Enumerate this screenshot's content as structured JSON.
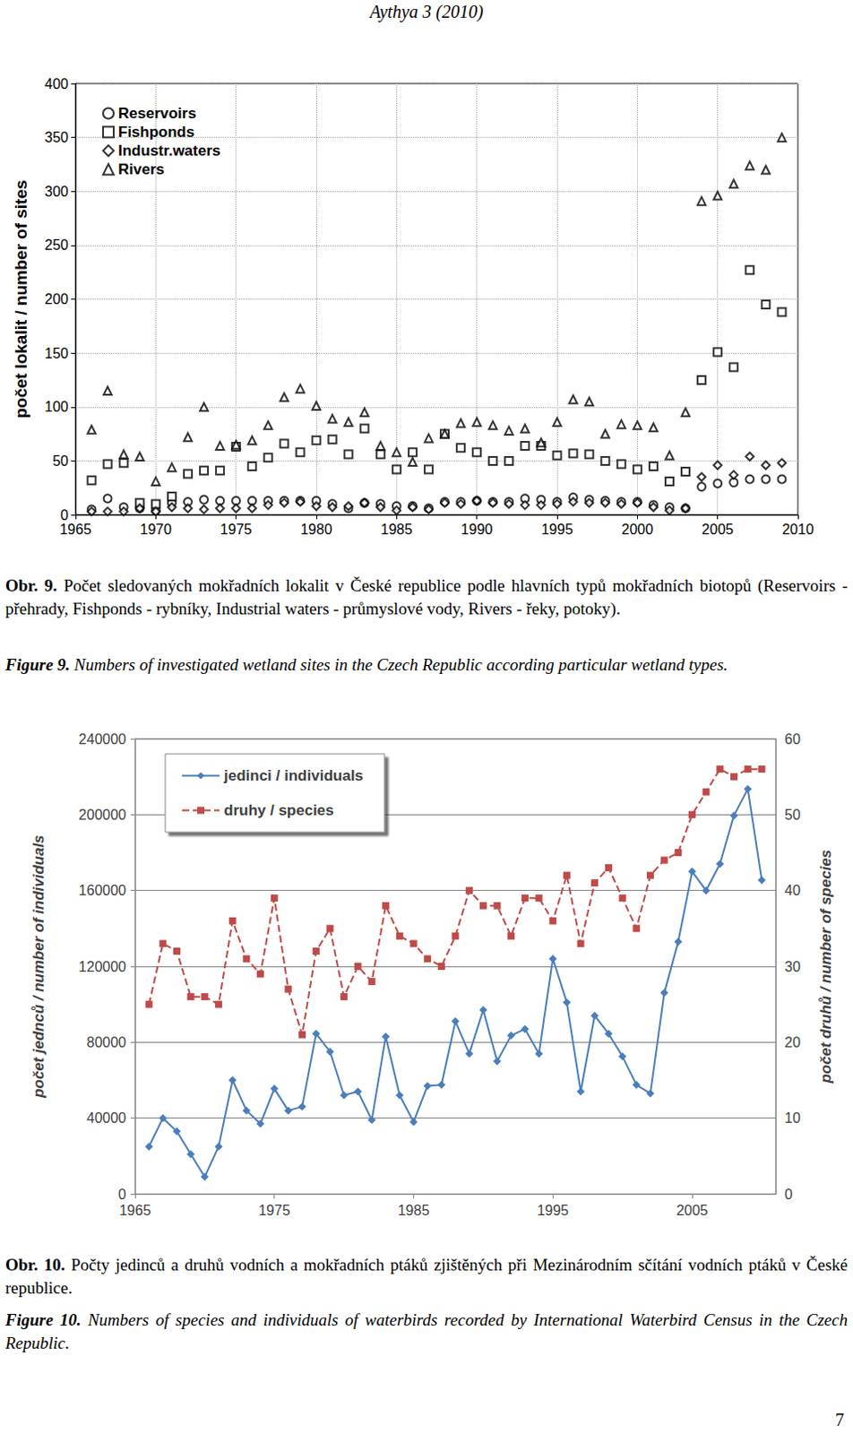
{
  "header": "Aythya 3 (2010)",
  "page_number": "7",
  "captions": [
    {
      "label": "Obr. 9.",
      "text": "Počet sledovaných mokřadních lokalit v České republice podle hlavních typů mokřadních biotopů (Reservoirs - přehrady, Fishponds - rybníky, Industrial waters - průmyslové vody, Rivers - řeky, potoky)."
    },
    {
      "label": "Figure 9.",
      "text": "Numbers of investigated wetland sites in the Czech Republic according particular wetland types."
    },
    {
      "label": "Obr. 10.",
      "text": "Počty jedinců a druhů vodních a mokřadních ptáků zjištěných při Mezinárodním sčítání vodních ptáků v České republice."
    },
    {
      "label": "Figure 10.",
      "text": "Numbers of species and individuals of waterbirds recorded by International Waterbird Census in the Czech Republic."
    }
  ],
  "chart_data": [
    {
      "type": "scatter",
      "y_label": "počet lokalit / number of sites",
      "x": [
        1966,
        1967,
        1968,
        1969,
        1970,
        1971,
        1972,
        1973,
        1974,
        1975,
        1976,
        1977,
        1978,
        1979,
        1980,
        1981,
        1982,
        1983,
        1984,
        1985,
        1986,
        1987,
        1988,
        1989,
        1990,
        1991,
        1992,
        1993,
        1994,
        1995,
        1996,
        1997,
        1998,
        1999,
        2000,
        2001,
        2002,
        2003,
        2004,
        2005,
        2006,
        2007,
        2008,
        2009
      ],
      "xlim": [
        1965,
        2010
      ],
      "xticks": [
        1965,
        1970,
        1975,
        1980,
        1985,
        1990,
        1995,
        2000,
        2005,
        2010
      ],
      "ylim": [
        0,
        400
      ],
      "yticks": [
        0,
        50,
        100,
        150,
        200,
        250,
        300,
        350,
        400
      ],
      "grid": true,
      "legend": "upper left",
      "series": [
        {
          "name": "Reservoirs",
          "color": "#000000",
          "marker": "circle",
          "values": [
            5,
            15,
            7,
            6,
            4,
            11,
            12,
            14,
            13,
            13,
            13,
            13,
            13,
            13,
            13,
            10,
            6,
            11,
            10,
            8,
            8,
            6,
            12,
            12,
            13,
            12,
            12,
            15,
            14,
            12,
            16,
            14,
            13,
            12,
            12,
            9,
            7,
            6,
            26,
            29,
            30,
            33,
            33,
            33
          ]
        },
        {
          "name": "Fishponds",
          "color": "#000000",
          "marker": "square",
          "values": [
            32,
            47,
            48,
            11,
            10,
            17,
            38,
            41,
            41,
            63,
            45,
            53,
            66,
            58,
            69,
            70,
            56,
            80,
            56,
            42,
            58,
            42,
            75,
            62,
            58,
            50,
            50,
            64,
            64,
            55,
            57,
            56,
            50,
            47,
            42,
            45,
            31,
            40,
            125,
            151,
            137,
            227,
            195,
            188
          ]
        },
        {
          "name": "Industr.waters",
          "color": "#000000",
          "marker": "diamond",
          "values": [
            3,
            3,
            3,
            6,
            3,
            7,
            6,
            5,
            6,
            6,
            6,
            9,
            11,
            12,
            8,
            7,
            8,
            11,
            7,
            4,
            7,
            5,
            11,
            10,
            13,
            11,
            10,
            9,
            9,
            10,
            12,
            11,
            11,
            10,
            11,
            7,
            4,
            6,
            35,
            46,
            37,
            54,
            46,
            48
          ]
        },
        {
          "name": "Rivers",
          "color": "#000000",
          "marker": "triangle",
          "values": [
            79,
            115,
            56,
            54,
            31,
            44,
            72,
            100,
            64,
            65,
            69,
            83,
            109,
            117,
            101,
            89,
            86,
            95,
            64,
            58,
            49,
            71,
            75,
            85,
            86,
            83,
            78,
            80,
            67,
            86,
            107,
            105,
            75,
            84,
            83,
            81,
            55,
            95,
            291,
            296,
            307,
            324,
            320,
            350
          ]
        }
      ]
    },
    {
      "type": "line",
      "y_label": "počet jednců / number of individuals",
      "y2_label": "počet druhů / number of species",
      "x": [
        1966,
        1967,
        1968,
        1969,
        1970,
        1971,
        1972,
        1973,
        1974,
        1975,
        1976,
        1977,
        1978,
        1979,
        1980,
        1981,
        1982,
        1983,
        1984,
        1985,
        1986,
        1987,
        1988,
        1989,
        1990,
        1991,
        1992,
        1993,
        1994,
        1995,
        1996,
        1997,
        1998,
        1999,
        2000,
        2001,
        2002,
        2003,
        2004,
        2005,
        2006,
        2007,
        2008,
        2009,
        2010
      ],
      "xlim": [
        1965,
        2011
      ],
      "xticks": [
        1965,
        1975,
        1985,
        1995,
        2005
      ],
      "ylim": [
        0,
        240000
      ],
      "yticks": [
        0,
        40000,
        80000,
        120000,
        160000,
        200000,
        240000
      ],
      "y2lim": [
        0,
        60
      ],
      "y2ticks": [
        0,
        10,
        20,
        30,
        40,
        50,
        60
      ],
      "grid": "y",
      "legend": "upper left",
      "series": [
        {
          "name": "jedinci / individuals",
          "color": "#4a7ebb",
          "marker": "diamond",
          "line_style": "solid",
          "values": [
            25000,
            40000,
            33000,
            21000,
            9000,
            25000,
            60000,
            44000,
            37000,
            55500,
            44000,
            46000,
            84500,
            75000,
            52000,
            54000,
            39000,
            83000,
            52000,
            38000,
            57000,
            57500,
            91000,
            74000,
            97000,
            70000,
            83500,
            87000,
            74000,
            124000,
            101000,
            54000,
            94000,
            84500,
            72500,
            57500,
            53000,
            106000,
            133000,
            170000,
            160000,
            174000,
            199500,
            213500,
            165500
          ]
        },
        {
          "name": "druhy / species",
          "color": "#be4b48",
          "marker": "square",
          "line_style": "dashed",
          "axis": "y2",
          "values": [
            25,
            33,
            32,
            26,
            26,
            25,
            36,
            31,
            29,
            39,
            27,
            21,
            32,
            35,
            26,
            30,
            28,
            38,
            34,
            33,
            31,
            30,
            34,
            40,
            38,
            38,
            34,
            39,
            39,
            36,
            42,
            33,
            41,
            43,
            39,
            35,
            42,
            44,
            45,
            50,
            53,
            56,
            55,
            56,
            56
          ]
        }
      ]
    }
  ]
}
